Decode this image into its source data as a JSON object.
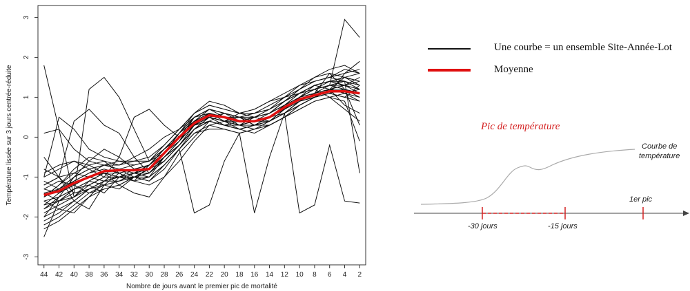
{
  "chart_data": {
    "type": "line",
    "title": "",
    "xlabel": "Nombre de jours avant le premier pic de mortalité",
    "ylabel": "Température lissée sur 3 jours centrée-réduite",
    "x_reversed": true,
    "xlim": [
      44.8,
      1.2
    ],
    "ylim": [
      -3.2,
      3.3
    ],
    "x_ticks": [
      44,
      42,
      40,
      38,
      36,
      34,
      32,
      30,
      28,
      26,
      24,
      22,
      20,
      18,
      16,
      14,
      12,
      10,
      8,
      6,
      4,
      2
    ],
    "y_ticks": [
      -3,
      -2,
      -1,
      0,
      1,
      2,
      3
    ],
    "grid": false,
    "x": [
      44,
      42,
      40,
      38,
      36,
      34,
      32,
      30,
      28,
      26,
      24,
      22,
      20,
      18,
      16,
      14,
      12,
      10,
      8,
      6,
      4,
      2
    ],
    "mean": {
      "color": "#e01010",
      "values": [
        -1.45,
        -1.35,
        -1.15,
        -1.0,
        -0.85,
        -0.83,
        -0.83,
        -0.8,
        -0.4,
        0.0,
        0.35,
        0.55,
        0.5,
        0.4,
        0.4,
        0.5,
        0.75,
        0.95,
        1.05,
        1.15,
        1.15,
        1.1
      ]
    },
    "curves_color": "#111111",
    "curves": [
      [
        1.8,
        0.2,
        -1.5,
        -1.2,
        -1.4,
        -1.0,
        -0.9,
        -1.0,
        -0.5,
        -0.1,
        0.5,
        0.6,
        0.4,
        0.3,
        0.5,
        0.6,
        0.9,
        1.1,
        1.3,
        1.4,
        1.5,
        1.4
      ],
      [
        -1.8,
        -1.5,
        -1.3,
        -1.2,
        -1.0,
        -1.0,
        -0.9,
        -0.8,
        -0.6,
        -0.2,
        0.3,
        0.5,
        0.4,
        0.5,
        0.3,
        0.5,
        0.7,
        1.0,
        1.2,
        1.3,
        2.95,
        2.5
      ],
      [
        -2.5,
        -1.6,
        -1.3,
        -1.1,
        -1.2,
        -0.9,
        -1.1,
        -0.7,
        -0.3,
        0.0,
        0.4,
        0.6,
        0.5,
        0.3,
        0.4,
        0.4,
        0.6,
        0.8,
        1.0,
        1.2,
        1.3,
        1.2
      ],
      [
        0.1,
        0.2,
        -0.3,
        -0.6,
        -0.7,
        -0.8,
        -0.9,
        -0.8,
        -0.5,
        -0.2,
        0.2,
        0.4,
        0.3,
        0.4,
        0.5,
        0.4,
        0.7,
        1.0,
        1.1,
        1.6,
        1.5,
        1.4
      ],
      [
        -0.5,
        -1.0,
        -1.6,
        -1.8,
        -1.2,
        -1.3,
        -1.0,
        -1.1,
        -0.7,
        -0.3,
        -1.9,
        -1.7,
        -0.6,
        0.1,
        -1.9,
        -0.5,
        0.6,
        -1.9,
        -1.7,
        -0.2,
        -1.6,
        -1.65
      ],
      [
        -1.2,
        -1.0,
        0.4,
        0.7,
        0.3,
        0.1,
        -0.5,
        -0.9,
        -0.5,
        -0.2,
        0.2,
        0.4,
        0.6,
        0.4,
        0.5,
        0.6,
        0.9,
        1.2,
        1.4,
        1.5,
        1.7,
        1.6
      ],
      [
        -1.0,
        0.5,
        0.2,
        -0.3,
        -0.5,
        -0.6,
        -0.7,
        -0.6,
        -0.3,
        0.0,
        0.3,
        0.5,
        0.3,
        0.2,
        0.3,
        0.3,
        0.5,
        0.8,
        1.0,
        1.1,
        1.0,
        1.3
      ],
      [
        -2.0,
        -1.5,
        -1.0,
        -0.6,
        -0.3,
        -0.5,
        -0.8,
        -0.7,
        -0.4,
        0.1,
        0.4,
        0.7,
        0.6,
        0.5,
        0.6,
        0.8,
        1.0,
        1.2,
        1.5,
        1.6,
        1.2,
        0.3
      ],
      [
        -1.5,
        -1.2,
        -0.9,
        -0.7,
        -0.6,
        -0.7,
        -0.5,
        -0.3,
        0.0,
        0.2,
        0.6,
        0.9,
        0.8,
        0.6,
        0.7,
        0.9,
        1.1,
        1.3,
        1.4,
        1.5,
        1.4,
        -0.9
      ],
      [
        -1.3,
        -1.4,
        -1.2,
        -1.0,
        -0.9,
        -1.0,
        -0.9,
        -0.9,
        -0.6,
        -0.2,
        0.3,
        0.4,
        0.3,
        0.3,
        0.2,
        0.4,
        0.6,
        0.9,
        1.0,
        1.1,
        1.6,
        1.9
      ],
      [
        -1.7,
        -1.6,
        -1.4,
        -1.3,
        -1.2,
        -1.1,
        -1.0,
        -0.9,
        -0.5,
        -0.1,
        0.4,
        0.6,
        0.5,
        0.4,
        0.4,
        0.5,
        0.7,
        1.0,
        1.1,
        1.2,
        1.1,
        1.0
      ],
      [
        -2.0,
        -1.8,
        -1.6,
        -1.3,
        -1.1,
        -1.0,
        -1.0,
        -0.9,
        -0.6,
        -0.2,
        0.2,
        0.5,
        0.4,
        0.3,
        0.3,
        0.4,
        0.7,
        0.9,
        1.1,
        1.3,
        1.3,
        1.2
      ],
      [
        -1.4,
        -1.3,
        -1.1,
        -0.9,
        -0.8,
        -0.9,
        -0.8,
        -0.7,
        -0.3,
        0.1,
        0.5,
        0.7,
        0.6,
        0.5,
        0.5,
        0.6,
        0.8,
        1.0,
        1.2,
        1.3,
        1.4,
        1.2
      ],
      [
        -0.8,
        -1.0,
        -1.4,
        1.2,
        1.5,
        1.0,
        0.2,
        -0.6,
        -0.4,
        0.0,
        0.4,
        0.5,
        0.4,
        0.3,
        0.4,
        0.5,
        0.6,
        0.8,
        1.0,
        1.1,
        1.2,
        1.1
      ],
      [
        -1.6,
        -1.5,
        -1.3,
        -1.2,
        -1.0,
        -0.5,
        0.5,
        0.7,
        0.3,
        0.0,
        0.3,
        0.5,
        0.4,
        0.4,
        0.5,
        0.6,
        0.9,
        1.1,
        1.3,
        1.2,
        0.8,
        0.6
      ],
      [
        -1.1,
        -1.3,
        -1.0,
        -0.8,
        -0.7,
        -0.8,
        -1.0,
        -1.1,
        -0.8,
        -0.3,
        0.1,
        0.2,
        0.2,
        0.1,
        0.2,
        0.3,
        0.5,
        0.7,
        0.9,
        1.0,
        0.9,
        -0.1
      ],
      [
        -1.9,
        -1.7,
        -1.5,
        -1.1,
        -0.9,
        -1.2,
        -1.4,
        -1.5,
        -1.0,
        -0.4,
        0.0,
        0.4,
        0.3,
        0.2,
        0.3,
        0.4,
        0.6,
        0.9,
        1.1,
        1.2,
        1.5,
        1.6
      ],
      [
        -1.5,
        -1.2,
        -0.8,
        -0.5,
        -0.6,
        -0.9,
        -1.1,
        -1.2,
        -1.0,
        -0.6,
        -0.1,
        0.3,
        0.4,
        0.6,
        0.7,
        0.9,
        1.0,
        1.1,
        1.2,
        1.0,
        0.7,
        0.4
      ],
      [
        -2.2,
        -2.0,
        -1.7,
        -1.4,
        -1.2,
        -1.1,
        -0.9,
        -0.7,
        -0.3,
        0.0,
        0.4,
        0.5,
        0.4,
        0.2,
        0.3,
        0.5,
        0.8,
        1.0,
        1.3,
        1.4,
        1.3,
        1.5
      ],
      [
        -1.3,
        -1.1,
        -1.2,
        -1.4,
        -1.3,
        -1.2,
        -1.0,
        -0.8,
        -0.4,
        0.1,
        0.6,
        0.8,
        0.7,
        0.6,
        0.5,
        0.7,
        0.9,
        1.2,
        1.4,
        1.5,
        1.6,
        1.7
      ],
      [
        -1.7,
        -1.4,
        -1.1,
        -0.9,
        -0.7,
        -0.6,
        -0.6,
        -0.6,
        -0.2,
        0.2,
        0.6,
        0.8,
        0.7,
        0.6,
        0.6,
        0.7,
        1.0,
        1.3,
        1.5,
        1.7,
        1.8,
        1.6
      ],
      [
        -0.9,
        -0.7,
        -0.6,
        -0.8,
        -1.0,
        -1.0,
        -0.9,
        -0.7,
        -0.4,
        -0.1,
        0.3,
        0.4,
        0.3,
        0.2,
        0.1,
        0.3,
        0.5,
        0.7,
        0.9,
        1.0,
        1.1,
        0.9
      ],
      [
        -1.6,
        -1.8,
        -1.9,
        -1.5,
        -1.1,
        -0.8,
        -0.7,
        -0.6,
        -0.3,
        0.1,
        0.5,
        0.6,
        0.5,
        0.5,
        0.4,
        0.6,
        0.8,
        1.1,
        1.3,
        1.4,
        1.3,
        1.1
      ],
      [
        -2.1,
        -1.9,
        -1.6,
        -1.3,
        -1.1,
        -1.0,
        -1.0,
        -1.0,
        -0.7,
        -0.3,
        0.1,
        0.3,
        0.2,
        0.1,
        0.2,
        0.3,
        0.5,
        0.8,
        1.0,
        1.1,
        1.0,
        0.9
      ],
      [
        -1.2,
        -1.0,
        -0.9,
        -1.0,
        -1.1,
        -1.1,
        -1.0,
        -0.8,
        -0.5,
        -0.2,
        0.2,
        0.5,
        0.6,
        0.5,
        0.3,
        0.4,
        0.6,
        0.9,
        1.0,
        1.2,
        1.3,
        1.4
      ],
      [
        -1.4,
        -1.6,
        -1.5,
        -1.3,
        -1.1,
        -1.0,
        -0.8,
        -0.7,
        -0.3,
        0.0,
        0.5,
        0.7,
        0.5,
        0.4,
        0.5,
        0.6,
        0.8,
        1.1,
        1.2,
        1.4,
        1.5,
        1.3
      ],
      [
        -1.8,
        -1.6,
        -1.3,
        -1.1,
        -0.9,
        -0.9,
        -0.8,
        -0.8,
        -0.5,
        -0.1,
        0.3,
        0.6,
        0.5,
        0.4,
        0.4,
        0.5,
        0.7,
        1.0,
        1.2,
        1.3,
        1.2,
        1.1
      ],
      [
        -1.0,
        -0.8,
        -0.6,
        -0.7,
        -0.9,
        -1.0,
        -1.1,
        -1.0,
        -0.7,
        -0.3,
        0.2,
        0.4,
        0.3,
        0.3,
        0.4,
        0.5,
        0.7,
        0.9,
        1.1,
        1.2,
        1.1,
        1.2
      ],
      [
        -2.3,
        -2.1,
        -1.8,
        -1.5,
        -1.3,
        -1.2,
        -1.0,
        -0.9,
        -0.5,
        -0.2,
        0.2,
        0.4,
        0.3,
        0.2,
        0.3,
        0.4,
        0.6,
        0.9,
        1.0,
        1.2,
        1.2,
        1.0
      ],
      [
        -1.5,
        -1.3,
        -1.0,
        -0.8,
        -0.7,
        -0.7,
        -0.6,
        -0.5,
        -0.2,
        0.2,
        0.5,
        0.7,
        0.6,
        0.5,
        0.6,
        0.7,
        0.9,
        1.1,
        1.3,
        1.4,
        1.4,
        1.3
      ]
    ]
  },
  "legend": {
    "items": [
      {
        "label": "Une courbe = un ensemble Site-Année-Lot",
        "color": "#111111"
      },
      {
        "label": "Moyenne",
        "color": "#e01010"
      }
    ]
  },
  "schematic": {
    "title": "Pic de température",
    "curve_label_1": "Courbe de",
    "curve_label_2": "température",
    "tick_30": "-30 jours",
    "tick_15": "-15 jours",
    "tick_peak": "1er pic",
    "curve_color": "#aaaaaa",
    "tick_color": "#d42020"
  }
}
